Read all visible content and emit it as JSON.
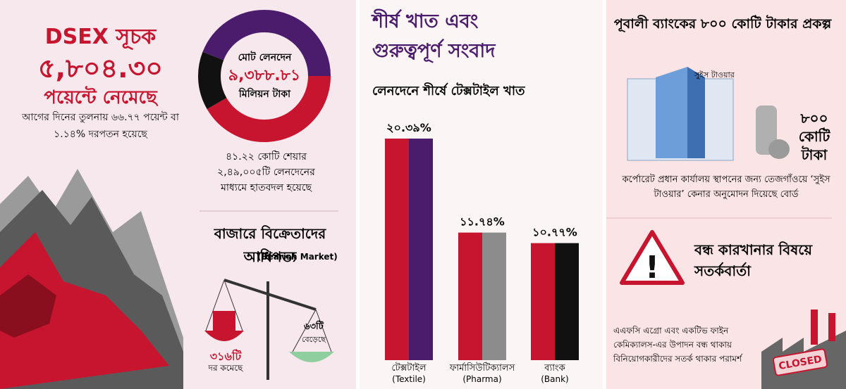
{
  "left": {
    "index_title": "DSEX সূচক",
    "index_value": "৫,৮০৪.৩০",
    "index_change": "পয়েন্টে নেমেছে",
    "index_note": "আগের দিনের তুলনায় ৬৬.৭৭ পয়েন্ট বা ১.১৪% দরপতন হয়েছে",
    "turnover_label": "মোট লেনদেন",
    "turnover_value": "৯,৩৮৮.৮১",
    "turnover_unit": "মিলিয়ন টাকা",
    "shares_note": "৪১.২২ কোটি শেয়ার ২,৪৯,০০৫টি লেনদেনের মাধ্যমে হাতবদল হয়েছে",
    "market_title": "বাজারে বিক্রেতাদের আধিপত্য",
    "market_note": "(Bearish Market)",
    "declined_count": "৩১৬টি",
    "declined_label": "দর কমেছে",
    "advanced_count": "৬৩টি",
    "advanced_label": "বেড়েছে"
  },
  "chart_data": {
    "type": "bar",
    "title": "শীর্ষ খাত এবং গুরুত্বপূর্ণ সংবাদ",
    "subtitle": "লেনদেনে শীর্ষে টেক্সটাইল খাত",
    "categories": [
      "টেক্সটাইল",
      "ফার্মাসিউটিক্যালস",
      "ব্যাংক"
    ],
    "category_notes": [
      "(Textile)",
      "(Pharma)",
      "(Bank)"
    ],
    "values": [
      20.39,
      11.74,
      10.77
    ],
    "value_labels": [
      "২০.৩৯%",
      "১১.৭৪%",
      "১০.৭৭%"
    ],
    "colors": [
      [
        "#c8152f",
        "#4b1c6b"
      ],
      [
        "#c8152f",
        "#8c8c8c"
      ],
      [
        "#c8152f",
        "#111111"
      ]
    ]
  },
  "right": {
    "project_title": "পূবালী ব্যাংকের ৮০০ কোটি টাকার প্রকল্প",
    "tower_label": "সুইস টাওয়ার",
    "amount": "৮০০ কোটি টাকা",
    "project_note": "কর্পোরেট প্রধান কার্যালয় স্থাপনের জন্য তেজগাঁওয়ে ‘সুইস টাওয়ার’ কেনার অনুমোদন দিয়েছে বোর্ড",
    "warning_title": "বন্ধ কারখানার বিষয়ে সতর্কবার্তা",
    "warning_note": "এএফসি এগ্রো এবং একটিভ ফাইন কেমিক্যালস-এর উপাদন বন্ধ থাকায় বিনিয়োগকারীদের সতর্ক থাকার পরামর্শ",
    "closed_sign": "CLOSED"
  }
}
